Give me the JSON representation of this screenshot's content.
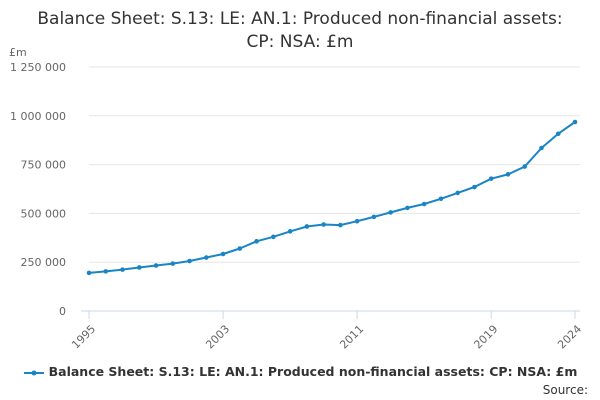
{
  "chart_data": {
    "type": "line",
    "title": "Balance Sheet: S.13: LE: AN.1: Produced non-financial assets: CP: NSA: £m",
    "ylabel": "£m",
    "xlabel": "",
    "ylim": [
      0,
      1250000
    ],
    "yticks": [
      0,
      250000,
      500000,
      750000,
      1000000,
      1250000
    ],
    "ytick_labels": [
      "0",
      "250 000",
      "500 000",
      "750 000",
      "1 000 000",
      "1 250 000"
    ],
    "xlim": [
      1995,
      2024
    ],
    "xticks": [
      1995,
      2003,
      2011,
      2019,
      2024
    ],
    "xtick_labels": [
      "1995",
      "2003",
      "2011",
      "2019",
      "2024"
    ],
    "grid": true,
    "legend_position": "bottom",
    "series": [
      {
        "name": "Balance Sheet: S.13: LE: AN.1: Produced non-financial assets: CP: NSA: £m",
        "color": "#1a85c5",
        "x": [
          1995,
          1996,
          1997,
          1998,
          1999,
          2000,
          2001,
          2002,
          2003,
          2004,
          2005,
          2006,
          2007,
          2008,
          2009,
          2010,
          2011,
          2012,
          2013,
          2014,
          2015,
          2016,
          2017,
          2018,
          2019,
          2020,
          2021,
          2022,
          2023,
          2024
        ],
        "values": [
          195000,
          203000,
          212000,
          223000,
          233000,
          243000,
          256000,
          274000,
          292000,
          320000,
          357000,
          380000,
          408000,
          433000,
          443000,
          440000,
          460000,
          482000,
          505000,
          528000,
          548000,
          575000,
          605000,
          635000,
          678000,
          700000,
          740000,
          835000,
          908000,
          968000
        ]
      }
    ]
  },
  "source_label": "Source:"
}
